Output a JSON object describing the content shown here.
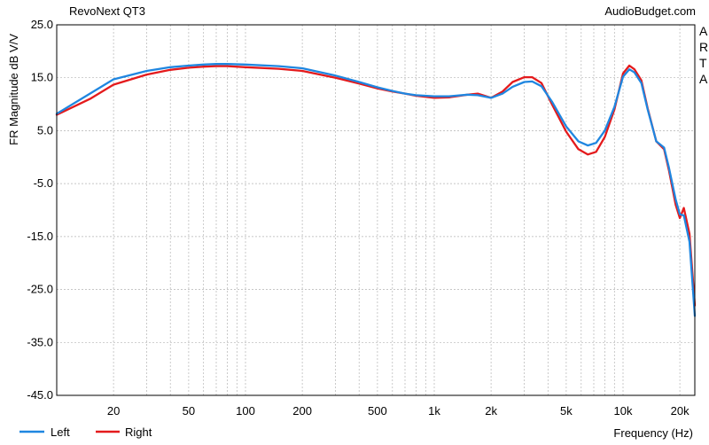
{
  "header": {
    "title": "RevoNext QT3",
    "source": "AudioBudget.com"
  },
  "side_letters": [
    "A",
    "R",
    "T",
    "A"
  ],
  "chart_data": {
    "type": "line",
    "title": "RevoNext QT3",
    "xlabel": "Frequency (Hz)",
    "ylabel": "FR Magnitude dB V/V",
    "x_scale": "log",
    "xlim": [
      10,
      24000
    ],
    "ylim": [
      -45,
      25
    ],
    "grid": true,
    "legend_position": "bottom-left",
    "y_ticks": [
      25,
      15,
      5,
      -5,
      -15,
      -25,
      -35,
      -45
    ],
    "y_tick_labels": [
      "25.0",
      "15.0",
      "5.0",
      "-5.0",
      "-15.0",
      "-25.0",
      "-35.0",
      "-45.0"
    ],
    "x_ticks": [
      20,
      50,
      100,
      200,
      500,
      1000,
      2000,
      5000,
      10000,
      20000
    ],
    "x_tick_labels": [
      "20",
      "50",
      "100",
      "200",
      "500",
      "1k",
      "2k",
      "5k",
      "10k",
      "20k"
    ],
    "series": [
      {
        "name": "Left",
        "color": "#1f86e0",
        "x": [
          10,
          15,
          20,
          30,
          40,
          50,
          60,
          70,
          80,
          100,
          150,
          200,
          300,
          400,
          500,
          600,
          700,
          800,
          1000,
          1200,
          1500,
          1700,
          2000,
          2300,
          2600,
          3000,
          3300,
          3700,
          4200,
          5000,
          5800,
          6500,
          7200,
          8000,
          9000,
          10000,
          10800,
          11500,
          12500,
          13500,
          15000,
          16500,
          17500,
          19000,
          20000,
          21000,
          22500,
          24000
        ],
        "y": [
          8.2,
          12.0,
          14.7,
          16.3,
          17.0,
          17.3,
          17.5,
          17.6,
          17.6,
          17.5,
          17.2,
          16.8,
          15.4,
          14.2,
          13.2,
          12.5,
          12.0,
          11.7,
          11.5,
          11.5,
          11.8,
          11.7,
          11.2,
          12.0,
          13.3,
          14.2,
          14.3,
          13.4,
          10.5,
          5.8,
          3.0,
          2.2,
          2.7,
          5.0,
          9.5,
          15.2,
          16.6,
          16.0,
          14.0,
          9.0,
          3.0,
          1.8,
          -2.0,
          -8.0,
          -10.8,
          -11.0,
          -16.0,
          -30.0
        ]
      },
      {
        "name": "Right",
        "color": "#e41a1c",
        "x": [
          10,
          15,
          20,
          30,
          40,
          50,
          60,
          70,
          80,
          100,
          150,
          200,
          300,
          400,
          500,
          600,
          700,
          800,
          1000,
          1200,
          1500,
          1700,
          2000,
          2300,
          2600,
          3000,
          3300,
          3700,
          4200,
          5000,
          5800,
          6500,
          7200,
          8000,
          9000,
          10000,
          10800,
          11500,
          12500,
          13500,
          15000,
          16500,
          17500,
          19000,
          20000,
          21000,
          22500,
          24000
        ],
        "y": [
          8.0,
          11.0,
          13.7,
          15.6,
          16.5,
          16.9,
          17.1,
          17.2,
          17.2,
          17.0,
          16.7,
          16.3,
          15.0,
          13.9,
          13.0,
          12.4,
          12.0,
          11.6,
          11.2,
          11.3,
          11.8,
          12.0,
          11.2,
          12.4,
          14.2,
          15.1,
          15.1,
          14.0,
          10.0,
          4.8,
          1.5,
          0.5,
          1.0,
          3.8,
          9.0,
          15.8,
          17.3,
          16.6,
          14.5,
          9.2,
          3.0,
          1.5,
          -2.5,
          -9.0,
          -11.5,
          -9.6,
          -14.5,
          -28.0
        ]
      }
    ]
  }
}
